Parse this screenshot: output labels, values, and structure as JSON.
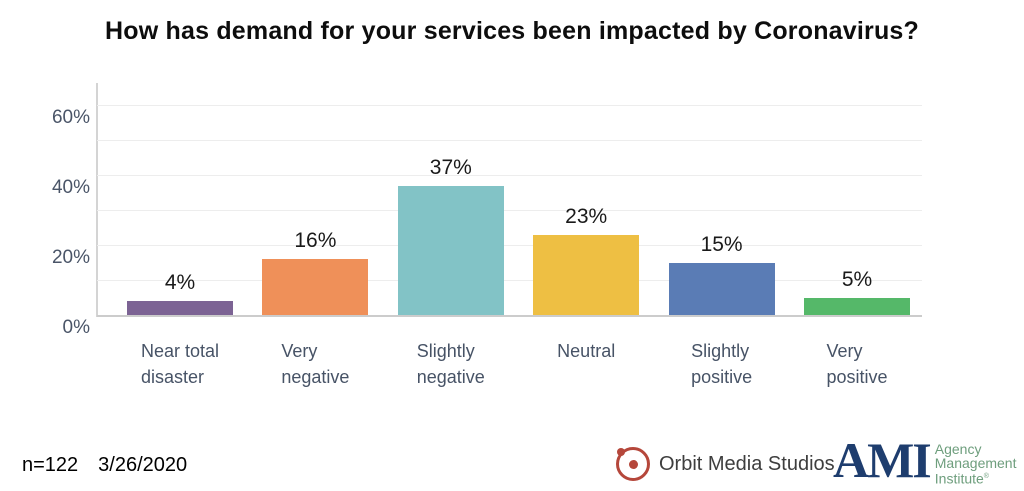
{
  "title": "How has demand for your services been impacted by Coronavirus?",
  "chart_data": {
    "type": "bar",
    "title": "How has demand for your services been impacted by Coronavirus?",
    "categories": [
      "Near total disaster",
      "Very negative",
      "Slightly negative",
      "Neutral",
      "Slightly positive",
      "Very positive"
    ],
    "category_lines": [
      [
        "Near total",
        "disaster"
      ],
      [
        "Very",
        "negative"
      ],
      [
        "Slightly",
        "negative"
      ],
      [
        "Neutral",
        ""
      ],
      [
        "Slightly",
        "positive"
      ],
      [
        "Very",
        "positive"
      ]
    ],
    "values": [
      4,
      16,
      37,
      23,
      15,
      5
    ],
    "value_labels": [
      "4%",
      "16%",
      "37%",
      "23%",
      "15%",
      "5%"
    ],
    "bar_colors": [
      "#7c6394",
      "#ef9059",
      "#82c3c6",
      "#eebf43",
      "#5a7cb5",
      "#55b869"
    ],
    "y_ticks": [
      {
        "value": 0,
        "label": "0%"
      },
      {
        "value": 20,
        "label": "20%"
      },
      {
        "value": 40,
        "label": "40%"
      },
      {
        "value": 60,
        "label": "60%"
      }
    ],
    "gridline_values": [
      10,
      20,
      30,
      40,
      50,
      60
    ],
    "ylim": [
      0,
      66
    ],
    "grid": true,
    "legend": "none",
    "xlabel": "",
    "ylabel": ""
  },
  "footer": {
    "sample_size": "n=122",
    "date": "3/26/2020"
  },
  "logos": {
    "orbit": {
      "name": "Orbit Media Studios",
      "accent_color": "#b5473b",
      "text_color": "#3e3e3e"
    },
    "ami": {
      "abbr": "AMI",
      "abbr_color": "#1e3d6e",
      "lines": [
        "Agency",
        "Management",
        "Institute"
      ],
      "trademark": "®",
      "text_color": "#6e9e7d"
    }
  }
}
